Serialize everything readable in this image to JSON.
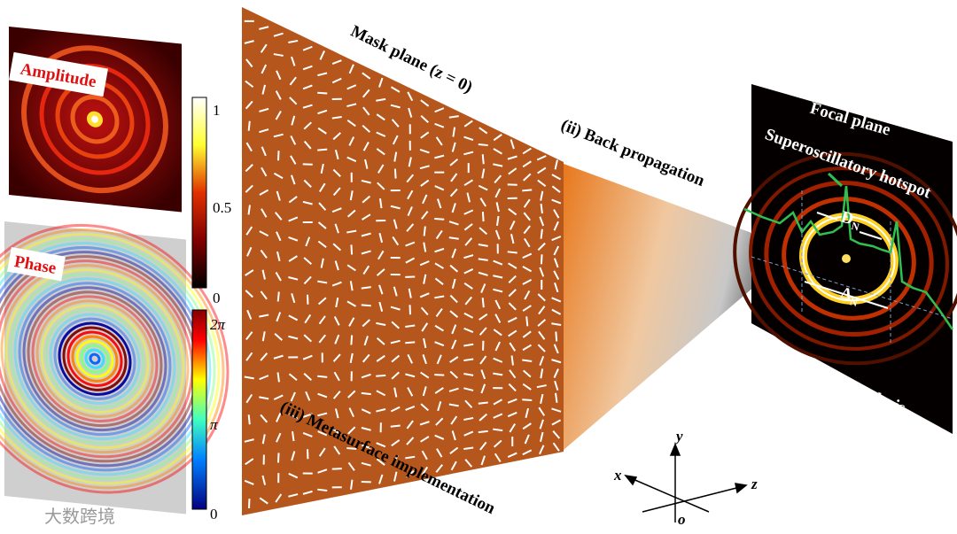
{
  "panels": {
    "amplitude": {
      "label": "Amplitude",
      "colorbar_ticks": [
        "1",
        "0.5",
        "0"
      ]
    },
    "phase": {
      "label": "Phase",
      "colorbar_ticks": [
        "2π",
        "π",
        "0"
      ]
    }
  },
  "mask": {
    "label": "Mask plane (z = 0)",
    "caption": "(iii) Metasurface implementation"
  },
  "propagation": {
    "label": "(ii) Back propagation"
  },
  "focal": {
    "title": "Focal plane",
    "hotspot": "Superoscillatory hotspot",
    "d": "D",
    "d_sub": "N",
    "delta": "Δ",
    "delta_sub": "N",
    "caption": "(i) CPSWF analysis"
  },
  "axes": {
    "x": "x",
    "y": "y",
    "z": "z",
    "origin": "o"
  },
  "watermark": "大数跨境"
}
